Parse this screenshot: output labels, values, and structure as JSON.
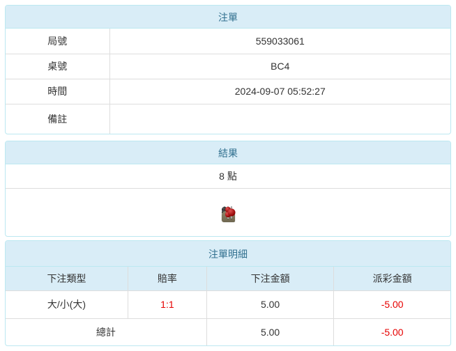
{
  "colors": {
    "accent": "#31708f",
    "header_bg": "#d9edf7",
    "panel_border": "#bce8f1",
    "red": "#e60000"
  },
  "bet_slip": {
    "title": "注單",
    "rows": [
      {
        "label": "局號",
        "value": "559033061"
      },
      {
        "label": "桌號",
        "value": "BC4"
      },
      {
        "label": "時間",
        "value": "2024-09-07 05:52:27"
      },
      {
        "label": "備註",
        "value": ""
      }
    ]
  },
  "result": {
    "title": "結果",
    "points": "8 點",
    "dice": [
      {
        "pips": 3,
        "pip_color": "black"
      },
      {
        "pips": 4,
        "pip_color": "red"
      },
      {
        "pips": 1,
        "pip_color": "red"
      }
    ],
    "info_icon": "i"
  },
  "detail": {
    "title": "注單明細",
    "columns": [
      "下注類型",
      "賠率",
      "下注金額",
      "派彩金額"
    ],
    "rows": [
      {
        "bet_type": "大/小(大)",
        "odds": "1:1",
        "bet_amount": "5.00",
        "payout": "-5.00"
      }
    ],
    "total": {
      "label": "總計",
      "bet_amount": "5.00",
      "payout": "-5.00"
    }
  }
}
